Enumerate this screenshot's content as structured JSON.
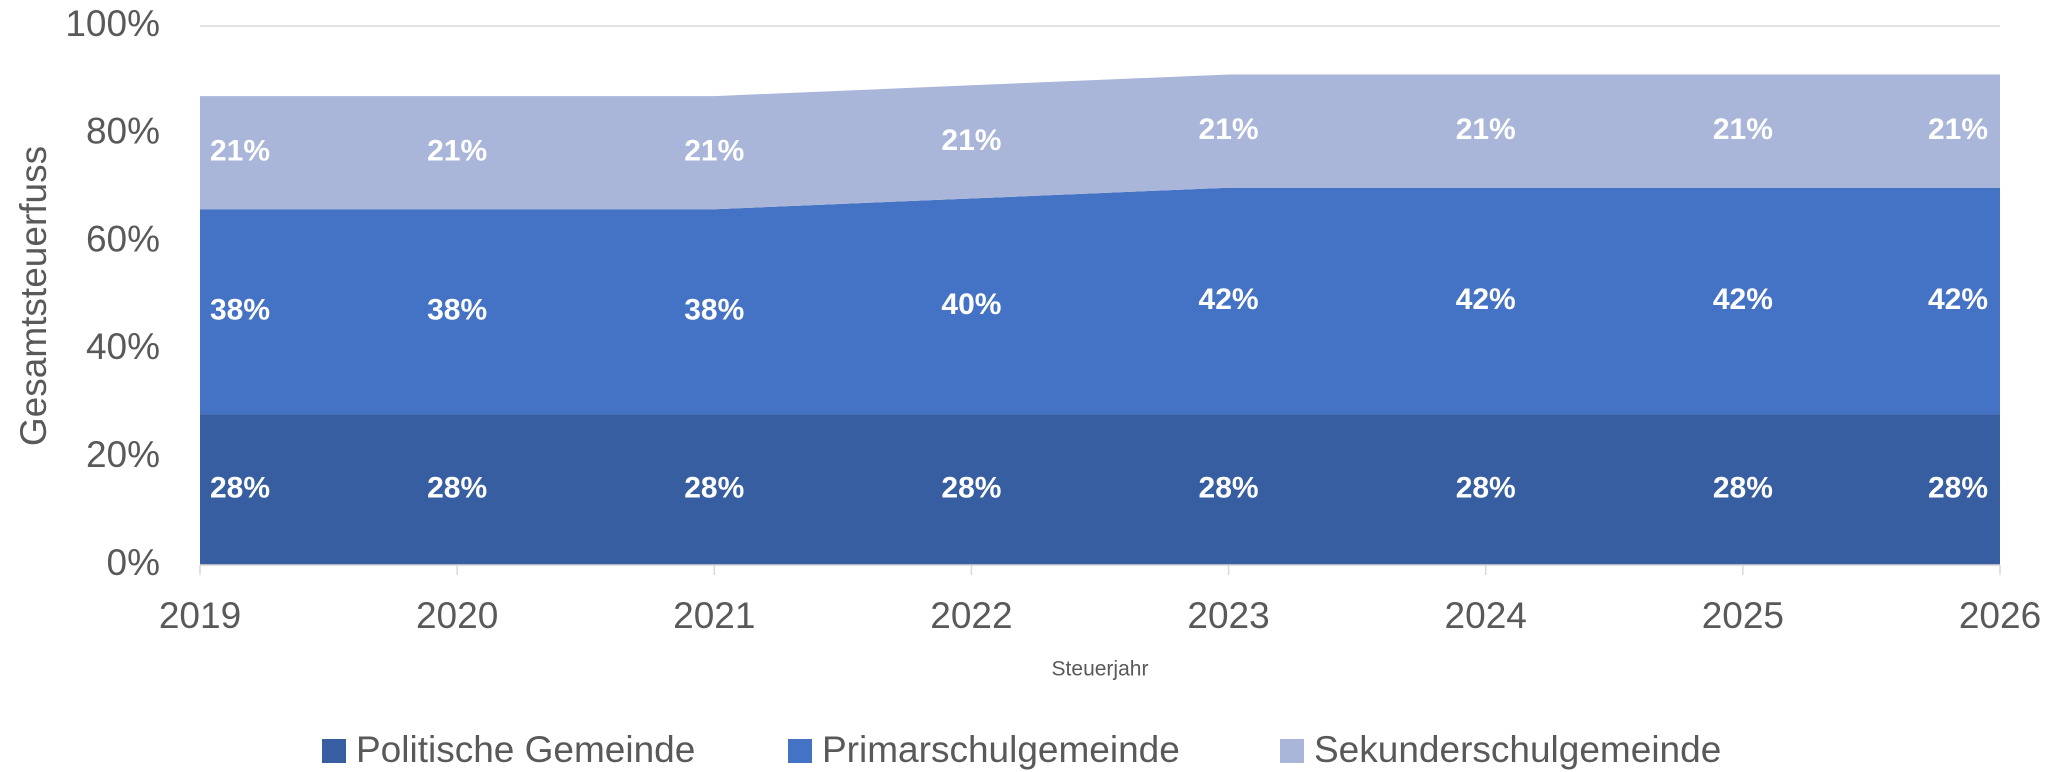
{
  "chart_data": {
    "type": "stacked_area",
    "categories": [
      "2019",
      "2020",
      "2021",
      "2022",
      "2023",
      "2024",
      "2025",
      "2026"
    ],
    "series": [
      {
        "name": "Politische Gemeinde",
        "color": "#375ea1",
        "values": [
          28,
          28,
          28,
          28,
          28,
          28,
          28,
          28
        ],
        "value_labels": [
          "28%",
          "28%",
          "28%",
          "28%",
          "28%",
          "28%",
          "28%",
          "28%"
        ]
      },
      {
        "name": "Primarschulgemeinde",
        "color": "#4472c4",
        "values": [
          38,
          38,
          38,
          40,
          42,
          42,
          42,
          42
        ],
        "value_labels": [
          "38%",
          "38%",
          "38%",
          "40%",
          "42%",
          "42%",
          "42%",
          "42%"
        ]
      },
      {
        "name": "Sekunderschulgemeinde",
        "color": "#a9b5d9",
        "values": [
          21,
          21,
          21,
          21,
          21,
          21,
          21,
          21
        ],
        "value_labels": [
          "21%",
          "21%",
          "21%",
          "21%",
          "21%",
          "21%",
          "21%",
          "21%"
        ]
      }
    ],
    "ylabel": "Gesamtsteuerfuss",
    "xlabel": "Steuerjahr",
    "ylim": [
      0,
      100
    ],
    "yticks": [
      {
        "value": 0,
        "label": "0%"
      },
      {
        "value": 20,
        "label": "20%"
      },
      {
        "value": 40,
        "label": "40%"
      },
      {
        "value": 60,
        "label": "60%"
      },
      {
        "value": 80,
        "label": "80%"
      },
      {
        "value": 100,
        "label": "100%"
      }
    ],
    "grid": true,
    "legend": "bottom"
  }
}
